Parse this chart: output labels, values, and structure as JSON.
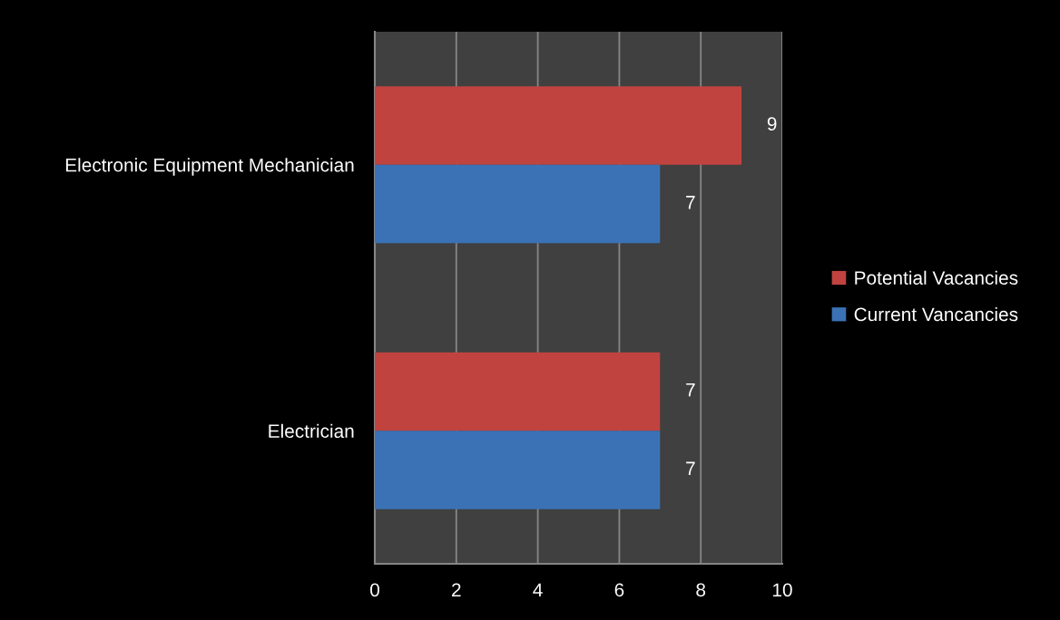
{
  "chart_data": {
    "type": "bar",
    "orientation": "horizontal",
    "categories": [
      "Electronic Equipment Mechanician",
      "Electrician"
    ],
    "series": [
      {
        "name": "Potential Vacancies",
        "color": "#c0433f",
        "values": [
          9,
          7
        ]
      },
      {
        "name": "Current Vancancies",
        "color": "#3b72b5",
        "values": [
          7,
          7
        ]
      }
    ],
    "xlim": [
      0,
      10
    ],
    "xticks": [
      0,
      2,
      4,
      6,
      8,
      10
    ],
    "grid": "x",
    "legend": "right",
    "data_labels": true
  }
}
